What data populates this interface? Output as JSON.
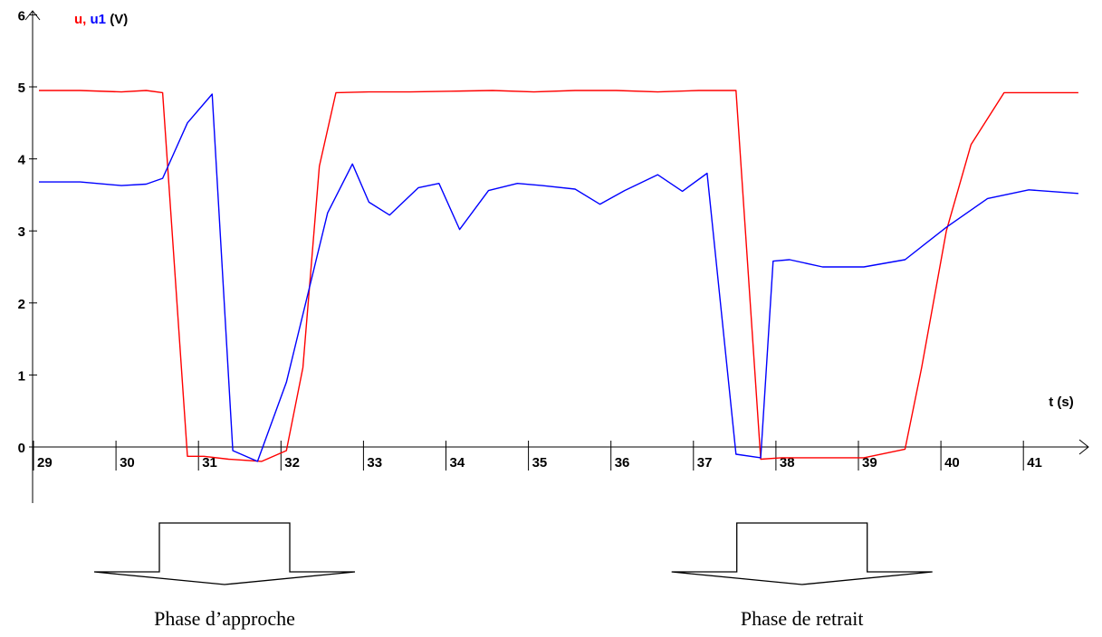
{
  "chart_data": {
    "type": "line",
    "ylabel_parts": [
      {
        "text": "u",
        "color": "#ff0000"
      },
      {
        "text": ", ",
        "color": "#ff0000"
      },
      {
        "text": "u1",
        "color": "#0000ff"
      },
      {
        "text": "  (V)",
        "color": "#000000"
      }
    ],
    "xlabel": "t (s)",
    "xlim": [
      28.95,
      41.7
    ],
    "ylim": [
      -0.8,
      6
    ],
    "x_ticks": [
      29,
      30,
      31,
      32,
      33,
      34,
      35,
      36,
      37,
      38,
      39,
      40,
      41
    ],
    "y_ticks": [
      0,
      1,
      2,
      3,
      4,
      5,
      6
    ],
    "grid": false,
    "series": [
      {
        "name": "u",
        "color": "#ff0000",
        "x": [
          29.0,
          29.5,
          30.0,
          30.3,
          30.5,
          30.8,
          31.0,
          31.3,
          31.7,
          32.0,
          32.2,
          32.4,
          32.6,
          33.0,
          33.5,
          34.0,
          34.5,
          35.0,
          35.5,
          36.0,
          36.5,
          37.0,
          37.45,
          37.75,
          38.0,
          38.5,
          39.0,
          39.5,
          39.7,
          40.0,
          40.3,
          40.7,
          41.0,
          41.6
        ],
        "values": [
          4.95,
          4.95,
          4.93,
          4.95,
          4.92,
          -0.13,
          -0.13,
          -0.17,
          -0.2,
          -0.05,
          1.1,
          3.9,
          4.92,
          4.93,
          4.93,
          4.94,
          4.95,
          4.93,
          4.95,
          4.95,
          4.93,
          4.95,
          4.95,
          -0.17,
          -0.15,
          -0.15,
          -0.15,
          -0.03,
          1.1,
          3.0,
          4.2,
          4.92,
          4.92,
          4.92
        ]
      },
      {
        "name": "u1",
        "color": "#0000ff",
        "x": [
          29.0,
          29.5,
          30.0,
          30.3,
          30.5,
          30.8,
          31.1,
          31.35,
          31.65,
          32.0,
          32.5,
          32.8,
          33.0,
          33.25,
          33.6,
          33.85,
          34.1,
          34.45,
          34.8,
          35.1,
          35.5,
          35.8,
          36.1,
          36.5,
          36.8,
          37.1,
          37.45,
          37.75,
          37.9,
          38.1,
          38.5,
          39.0,
          39.5,
          40.0,
          40.5,
          41.0,
          41.6
        ],
        "values": [
          3.68,
          3.68,
          3.63,
          3.65,
          3.73,
          4.5,
          4.9,
          -0.05,
          -0.2,
          0.9,
          3.25,
          3.93,
          3.4,
          3.22,
          3.6,
          3.66,
          3.02,
          3.56,
          3.66,
          3.63,
          3.58,
          3.37,
          3.56,
          3.78,
          3.55,
          3.8,
          -0.1,
          -0.15,
          2.58,
          2.6,
          2.5,
          2.5,
          2.6,
          3.05,
          3.45,
          3.57,
          3.52
        ]
      }
    ],
    "annotations": [
      {
        "text": "Phase d’approche",
        "x_start": 30.0,
        "x_end": 32.5
      },
      {
        "text": "Phase de retrait",
        "x_start": 37.0,
        "x_end": 39.5
      }
    ]
  }
}
